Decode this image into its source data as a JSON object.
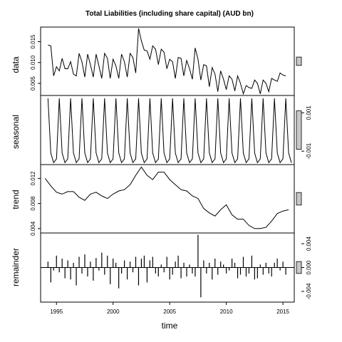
{
  "chart_data": {
    "type": "line",
    "title": "Total Liabilities (including share capital) (AUD bn)",
    "xlabel": "time",
    "x_ticks": [
      "1995",
      "2000",
      "2005",
      "2010",
      "2015"
    ],
    "xlim": [
      1993.6,
      2016.0
    ],
    "panels": [
      {
        "name": "data",
        "ylabel": "data",
        "style": "line",
        "ylim": [
          0.0021,
          0.0185
        ],
        "ticks": [
          {
            "v": 0.005,
            "label": "0.005"
          },
          {
            "v": 0.01,
            "label": "0.010"
          },
          {
            "v": 0.015,
            "label": "0.015"
          }
        ],
        "tick_side": "left",
        "x": [
          1994.25,
          1994.5,
          1994.75,
          1995.0,
          1995.25,
          1995.5,
          1995.75,
          1996.0,
          1996.25,
          1996.5,
          1996.75,
          1997.0,
          1997.25,
          1997.5,
          1997.75,
          1998.0,
          1998.25,
          1998.5,
          1998.75,
          1999.0,
          1999.25,
          1999.5,
          1999.75,
          2000.0,
          2000.25,
          2000.5,
          2000.75,
          2001.0,
          2001.25,
          2001.5,
          2001.75,
          2002.0,
          2002.25,
          2002.5,
          2002.75,
          2003.0,
          2003.25,
          2003.5,
          2003.75,
          2004.0,
          2004.25,
          2004.5,
          2004.75,
          2005.0,
          2005.25,
          2005.5,
          2005.75,
          2006.0,
          2006.25,
          2006.5,
          2006.75,
          2007.0,
          2007.25,
          2007.5,
          2007.75,
          2008.0,
          2008.25,
          2008.5,
          2008.75,
          2009.0,
          2009.25,
          2009.5,
          2009.75,
          2010.0,
          2010.25,
          2010.5,
          2010.75,
          2011.0,
          2011.25,
          2011.5,
          2011.75,
          2012.0,
          2012.25,
          2012.5,
          2012.75,
          2013.0,
          2013.25,
          2013.5,
          2013.75,
          2014.0,
          2014.25,
          2014.5,
          2014.75,
          2015.0,
          2015.25
        ],
        "values": [
          0.0142,
          0.014,
          0.0068,
          0.009,
          0.008,
          0.011,
          0.0085,
          0.0085,
          0.0102,
          0.0072,
          0.0068,
          0.0122,
          0.0102,
          0.0065,
          0.012,
          0.0095,
          0.0065,
          0.012,
          0.0092,
          0.0062,
          0.0122,
          0.011,
          0.0062,
          0.0108,
          0.0092,
          0.0062,
          0.012,
          0.0102,
          0.0065,
          0.0122,
          0.0112,
          0.0075,
          0.0182,
          0.0152,
          0.013,
          0.0128,
          0.0108,
          0.014,
          0.0132,
          0.0095,
          0.0132,
          0.0125,
          0.0085,
          0.0108,
          0.0102,
          0.0062,
          0.0112,
          0.011,
          0.0068,
          0.0105,
          0.0085,
          0.006,
          0.0135,
          0.0108,
          0.0058,
          0.0095,
          0.0092,
          0.0042,
          0.0088,
          0.0072,
          0.003,
          0.008,
          0.006,
          0.0035,
          0.0068,
          0.006,
          0.0032,
          0.0068,
          0.005,
          0.0025,
          0.0045,
          0.004,
          0.0038,
          0.0058,
          0.005,
          0.0025,
          0.0058,
          0.005,
          0.003,
          0.0062,
          0.0058,
          0.0055,
          0.0075,
          0.007,
          0.0068
        ]
      },
      {
        "name": "seasonal",
        "ylabel": "seasonal",
        "style": "line",
        "ylim": [
          -0.0017,
          0.0019
        ],
        "ticks": [
          {
            "v": -0.001,
            "label": "-0.001"
          },
          {
            "v": 0.001,
            "label": "0.001"
          }
        ],
        "tick_side": "right",
        "pattern": [
          0.00175,
          -0.0011,
          -0.0016,
          -0.0014
        ],
        "start": 1994.25,
        "end": 2015.75
      },
      {
        "name": "trend",
        "ylabel": "trend",
        "style": "line",
        "ylim": [
          0.0033,
          0.0142
        ],
        "ticks": [
          {
            "v": 0.004,
            "label": "0.004"
          },
          {
            "v": 0.008,
            "label": "0.008"
          },
          {
            "v": 0.012,
            "label": "0.012"
          }
        ],
        "tick_side": "left",
        "x": [
          1994.0,
          1994.5,
          1995.0,
          1995.5,
          1996.0,
          1996.5,
          1997.0,
          1997.5,
          1998.0,
          1998.5,
          1999.0,
          1999.5,
          2000.0,
          2000.5,
          2001.0,
          2001.5,
          2002.0,
          2002.5,
          2003.0,
          2003.5,
          2004.0,
          2004.5,
          2005.0,
          2005.5,
          2006.0,
          2006.5,
          2007.0,
          2007.5,
          2008.0,
          2008.5,
          2009.0,
          2009.5,
          2010.0,
          2010.5,
          2011.0,
          2011.5,
          2012.0,
          2012.5,
          2013.0,
          2013.5,
          2014.0,
          2014.5,
          2015.0,
          2015.5
        ],
        "values": [
          0.012,
          0.0108,
          0.0098,
          0.0095,
          0.0099,
          0.0099,
          0.009,
          0.0085,
          0.0095,
          0.0098,
          0.0092,
          0.0088,
          0.0095,
          0.01,
          0.0102,
          0.011,
          0.0125,
          0.0138,
          0.0125,
          0.0118,
          0.013,
          0.013,
          0.0118,
          0.011,
          0.0102,
          0.01,
          0.0092,
          0.0088,
          0.0072,
          0.0065,
          0.006,
          0.007,
          0.0078,
          0.0062,
          0.0055,
          0.0055,
          0.0045,
          0.004,
          0.004,
          0.0042,
          0.0052,
          0.0064,
          0.0068,
          0.007
        ]
      },
      {
        "name": "remainder",
        "ylabel": "remainder",
        "style": "bars",
        "ylim": [
          -0.0058,
          0.0058
        ],
        "ticks": [
          {
            "v": -0.004,
            "label": "-0.004"
          },
          {
            "v": 0.0,
            "label": "0.000"
          },
          {
            "v": 0.004,
            "label": "0.004"
          }
        ],
        "tick_side": "right",
        "x": [
          1994.25,
          1994.5,
          1994.75,
          1995.0,
          1995.25,
          1995.5,
          1995.75,
          1996.0,
          1996.25,
          1996.5,
          1996.75,
          1997.0,
          1997.25,
          1997.5,
          1997.75,
          1998.0,
          1998.25,
          1998.5,
          1998.75,
          1999.0,
          1999.25,
          1999.5,
          1999.75,
          2000.0,
          2000.25,
          2000.5,
          2000.75,
          2001.0,
          2001.25,
          2001.5,
          2001.75,
          2002.0,
          2002.25,
          2002.5,
          2002.75,
          2003.0,
          2003.25,
          2003.5,
          2003.75,
          2004.0,
          2004.25,
          2004.5,
          2004.75,
          2005.0,
          2005.25,
          2005.5,
          2005.75,
          2006.0,
          2006.25,
          2006.5,
          2006.75,
          2007.0,
          2007.25,
          2007.5,
          2007.75,
          2008.0,
          2008.25,
          2008.5,
          2008.75,
          2009.0,
          2009.25,
          2009.5,
          2009.75,
          2010.0,
          2010.25,
          2010.5,
          2010.75,
          2011.0,
          2011.25,
          2011.5,
          2011.75,
          2012.0,
          2012.25,
          2012.5,
          2012.75,
          2013.0,
          2013.25,
          2013.5,
          2013.75,
          2014.0,
          2014.25,
          2014.5,
          2014.75,
          2015.0,
          2015.25
        ],
        "values": [
          0.001,
          -0.0025,
          -0.0005,
          0.002,
          -0.0008,
          0.0015,
          -0.0018,
          0.0012,
          -0.002,
          0.0008,
          -0.003,
          0.0018,
          -0.001,
          0.0022,
          -0.0015,
          0.001,
          -0.0022,
          0.0016,
          -0.0005,
          0.0025,
          -0.0012,
          0.002,
          -0.0028,
          0.0015,
          0.0008,
          -0.0035,
          -0.001,
          0.0012,
          -0.002,
          0.001,
          -0.0008,
          0.0018,
          -0.003,
          0.0015,
          0.002,
          -0.0025,
          0.0012,
          0.0018,
          -0.001,
          -0.0015,
          0.0005,
          -0.0008,
          0.0018,
          -0.002,
          -0.0012,
          0.001,
          0.002,
          -0.0018,
          0.0008,
          -0.0015,
          0.0005,
          -0.001,
          -0.0015,
          0.0055,
          -0.005,
          0.0012,
          -0.001,
          0.0008,
          -0.002,
          0.0015,
          -0.0012,
          0.001,
          0.0005,
          -0.001,
          -0.0005,
          0.0015,
          0.0008,
          -0.0018,
          -0.0012,
          0.0018,
          -0.0015,
          -0.001,
          0.002,
          -0.002,
          -0.0018,
          0.0005,
          -0.0012,
          0.0008,
          -0.001,
          -0.0015,
          0.0008,
          0.0015,
          -0.0005,
          0.001,
          -0.0012
        ]
      }
    ],
    "colors": {
      "line": "#000000",
      "scale_bar": "#c8c8c8"
    }
  }
}
